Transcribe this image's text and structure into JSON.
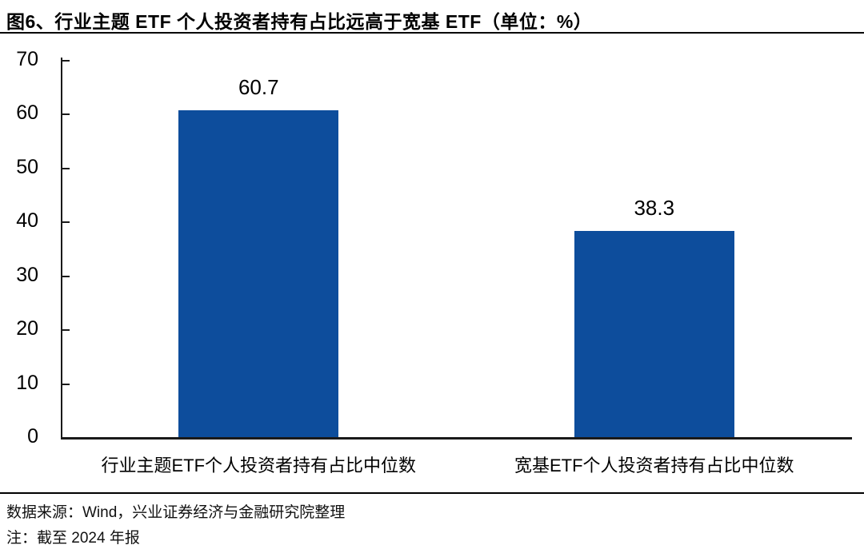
{
  "title": "图6、行业主题 ETF 个人投资者持有占比远高于宽基 ETF（单位：%）",
  "chart_data": {
    "type": "bar",
    "title": "行业主题 ETF 个人投资者持有占比远高于宽基 ETF",
    "unit": "%",
    "categories": [
      "行业主题ETF个人投资者持有占比中位数",
      "宽基ETF个人投资者持有占比中位数"
    ],
    "values": [
      60.7,
      38.3
    ],
    "value_labels": [
      "60.7",
      "38.3"
    ],
    "ylim": [
      0,
      70
    ],
    "yticks": [
      0,
      10,
      20,
      30,
      40,
      50,
      60,
      70
    ],
    "grid": false,
    "legend": null,
    "bar_color": "#0D4D9C",
    "axis_color": "#1a1a1a",
    "text_color": "#000000"
  },
  "footer": {
    "source": "数据来源：Wind，兴业证券经济与金融研究院整理",
    "note": "注：截至 2024 年报"
  }
}
